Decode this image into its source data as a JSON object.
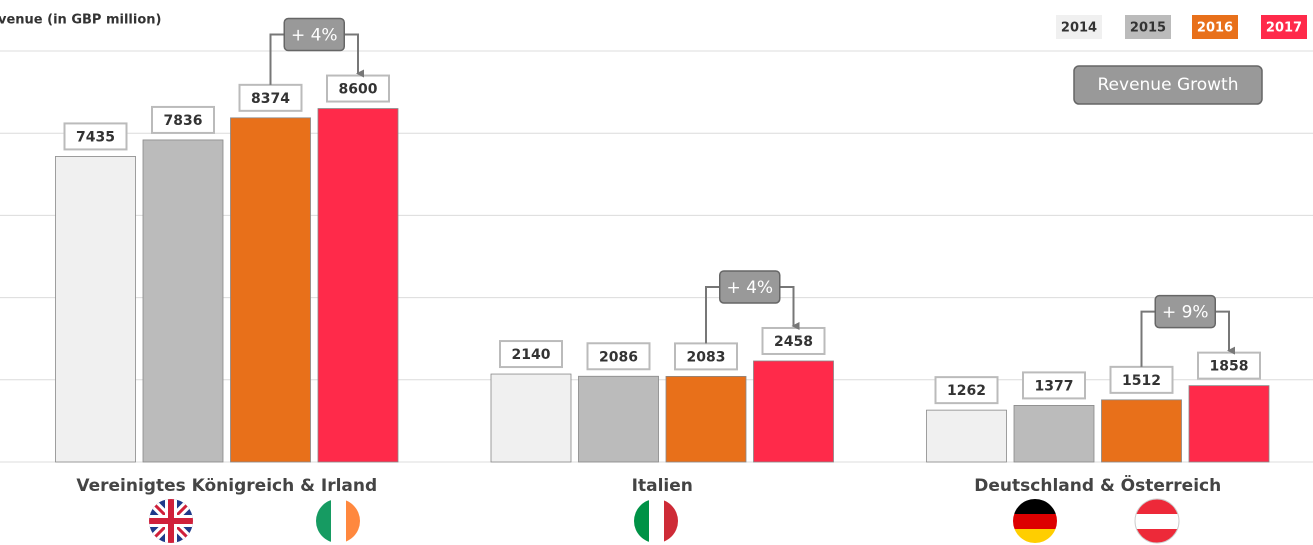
{
  "chart_data": {
    "type": "bar",
    "title": "venue (in GBP million)",
    "categories": [
      "Vereinigtes Königreich & Irland",
      "Italien",
      "Deutschland & Österreich"
    ],
    "series": [
      {
        "name": "2014",
        "color": "#f0f0f0",
        "values": [
          7435,
          2140,
          1262
        ]
      },
      {
        "name": "2015",
        "color": "#bbbbbb",
        "values": [
          7836,
          2086,
          1377
        ]
      },
      {
        "name": "2016",
        "color": "#e8701a",
        "values": [
          8374,
          2083,
          1512
        ]
      },
      {
        "name": "2017",
        "color": "#ff2a4a",
        "values": [
          8600,
          2458,
          1858
        ]
      }
    ],
    "growth_labels": [
      "+ 4%",
      "+ 4%",
      "+ 9%"
    ],
    "button": "Revenue Growth",
    "ylim": [
      0,
      10000
    ],
    "yticks": [
      0,
      2000,
      4000,
      6000,
      8000,
      10000
    ],
    "grid": true,
    "legend": "top-right"
  }
}
